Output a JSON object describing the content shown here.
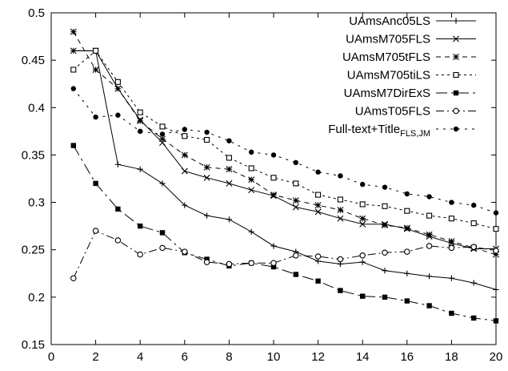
{
  "chart_data": {
    "type": "line",
    "title": "",
    "xlabel": "",
    "ylabel": "",
    "xlim": [
      0,
      20
    ],
    "ylim": [
      0.15,
      0.5
    ],
    "x_ticks": [
      "0",
      "2",
      "4",
      "6",
      "8",
      "10",
      "12",
      "14",
      "16",
      "18",
      "20"
    ],
    "y_ticks": [
      "0.15",
      "0.2",
      "0.25",
      "0.3",
      "0.35",
      "0.4",
      "0.45",
      "0.5"
    ],
    "grid": false,
    "legend_position": "top-right",
    "x": [
      1,
      2,
      3,
      4,
      5,
      6,
      7,
      8,
      9,
      10,
      11,
      12,
      13,
      14,
      15,
      16,
      17,
      18,
      19,
      20
    ],
    "series": [
      {
        "name": "UAmsAnc05LS",
        "legend_main": "UAmsAnc05LS",
        "legend_sub": "",
        "legend_suffix": "",
        "marker": "plus",
        "dash": "",
        "values": [
          0.46,
          0.46,
          0.34,
          0.335,
          0.32,
          0.297,
          0.286,
          0.282,
          0.269,
          0.254,
          0.248,
          0.238,
          0.235,
          0.237,
          0.228,
          0.225,
          0.222,
          0.22,
          0.215,
          0.208
        ]
      },
      {
        "name": "UAmsM705FLS",
        "legend_main": "UAmsM705FLS",
        "legend_sub": "",
        "legend_suffix": "",
        "marker": "x",
        "dash": "",
        "values": [
          0.46,
          0.46,
          0.42,
          0.387,
          0.363,
          0.333,
          0.326,
          0.32,
          0.313,
          0.307,
          0.295,
          0.29,
          0.283,
          0.277,
          0.277,
          0.272,
          0.264,
          0.257,
          0.251,
          0.251
        ]
      },
      {
        "name": "UAmsM705tFLS",
        "legend_main": "UAmsM705tFLS",
        "legend_sub": "",
        "legend_suffix": "",
        "marker": "star",
        "dash": "6,5",
        "values": [
          0.48,
          0.44,
          0.42,
          0.386,
          0.367,
          0.35,
          0.337,
          0.335,
          0.324,
          0.308,
          0.302,
          0.297,
          0.292,
          0.283,
          0.276,
          0.273,
          0.266,
          0.259,
          0.252,
          0.245
        ]
      },
      {
        "name": "UAmsM705tiLS",
        "legend_main": "UAmsM705tiLS",
        "legend_sub": "",
        "legend_suffix": "",
        "marker": "square-open",
        "dash": "3,4",
        "values": [
          0.44,
          0.46,
          0.427,
          0.395,
          0.38,
          0.37,
          0.366,
          0.347,
          0.336,
          0.326,
          0.32,
          0.308,
          0.303,
          0.298,
          0.296,
          0.291,
          0.286,
          0.283,
          0.278,
          0.272
        ]
      },
      {
        "name": "UAmsM7DirExS",
        "legend_main": "UAmsM7DirExS",
        "legend_sub": "",
        "legend_suffix": "",
        "marker": "square-filled",
        "dash": "14,5,3,5",
        "values": [
          0.36,
          0.32,
          0.293,
          0.275,
          0.268,
          0.247,
          0.24,
          0.233,
          0.236,
          0.232,
          0.224,
          0.217,
          0.207,
          0.201,
          0.2,
          0.196,
          0.191,
          0.183,
          0.178,
          0.175
        ]
      },
      {
        "name": "UAmsT05FLS",
        "legend_main": "UAmsT05FLS",
        "legend_sub": "",
        "legend_suffix": "",
        "marker": "circle-open",
        "dash": "10,4,2,4",
        "values": [
          0.22,
          0.27,
          0.26,
          0.245,
          0.252,
          0.248,
          0.237,
          0.235,
          0.236,
          0.236,
          0.244,
          0.243,
          0.24,
          0.244,
          0.247,
          0.248,
          0.254,
          0.252,
          0.253,
          0.249
        ]
      },
      {
        "name": "Full-text+TitleFLS,JM",
        "legend_main": "Full-text+Title",
        "legend_sub": "FLS,JM",
        "legend_suffix": "",
        "marker": "circle-filled",
        "dash": "3,6",
        "values": [
          0.42,
          0.39,
          0.392,
          0.375,
          0.372,
          0.377,
          0.374,
          0.365,
          0.353,
          0.35,
          0.342,
          0.332,
          0.328,
          0.319,
          0.316,
          0.309,
          0.306,
          0.3,
          0.297,
          0.289
        ]
      }
    ]
  }
}
